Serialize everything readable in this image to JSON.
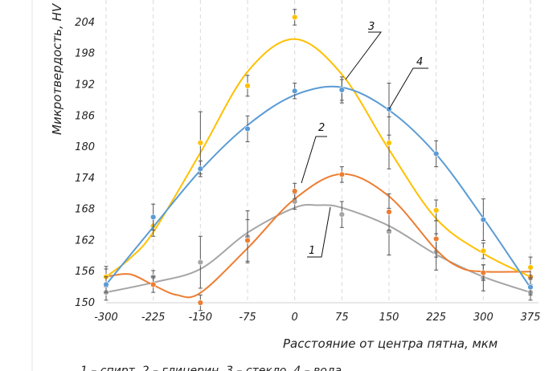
{
  "chart_data": {
    "type": "line",
    "ylabel": "Микротвердость, HV",
    "xlabel": "Расстояние от центра пятна, мкм",
    "legend": "1 – спирт, 2 – глицерин, 3 – стекло, 4 – вода",
    "x": [
      -300,
      -225,
      -150,
      -75,
      0,
      75,
      150,
      225,
      300,
      375
    ],
    "xticks": [
      "-300",
      "-225",
      "-150",
      "-75",
      "0",
      "75",
      "150",
      "225",
      "300",
      "375"
    ],
    "yticks": [
      "150",
      "156",
      "162",
      "168",
      "174",
      "180",
      "186",
      "192",
      "198",
      "204"
    ],
    "xlim": [
      -300,
      375
    ],
    "ylim": [
      150,
      206
    ],
    "grid": "vertical dashed",
    "series": [
      {
        "name": "1",
        "color": "#a5a5a5",
        "values": [
          152.0,
          155.0,
          157.8,
          162.7,
          169.5,
          167.0,
          163.7,
          159.8,
          154.8,
          152.0
        ],
        "errors": [
          1.5,
          1.2,
          5.0,
          5.0,
          1.5,
          2.5,
          4.5,
          3.5,
          2.5,
          1.5
        ],
        "fit_x": [
          -300,
          -225,
          -150,
          -75,
          0,
          37.5,
          75,
          150,
          225,
          300,
          375
        ],
        "fit_y": [
          152.0,
          153.9,
          156.5,
          163.5,
          168.3,
          168.8,
          168.3,
          164.8,
          159.3,
          155.0,
          152.0
        ]
      },
      {
        "name": "2",
        "color": "#ed7d31",
        "values": [
          155.0,
          153.5,
          150.0,
          162.0,
          171.5,
          174.7,
          167.5,
          162.3,
          155.8,
          155.0
        ],
        "errors": [
          1.5,
          1.5,
          1.5,
          4.0,
          1.5,
          1.5,
          3.5,
          3.5,
          1.5,
          1.5
        ],
        "fit_x": [
          -300,
          -262.5,
          -225,
          -187.5,
          -150,
          -75,
          0,
          75,
          150,
          225,
          262.5,
          300,
          375
        ],
        "fit_y": [
          155.0,
          155.5,
          153.4,
          151.5,
          151.9,
          160.5,
          170.0,
          174.8,
          170.5,
          160.2,
          156.8,
          156.0,
          156.0
        ]
      },
      {
        "name": "3",
        "color": "#ffc000",
        "values": [
          155.0,
          164.8,
          180.8,
          191.8,
          205.0,
          191.0,
          180.8,
          167.8,
          160.0,
          156.8
        ],
        "errors": [
          2.0,
          2.0,
          6.0,
          2.0,
          1.5,
          2.0,
          5.0,
          2.0,
          1.5,
          2.0
        ],
        "fit_x": [
          -300,
          -262.5,
          -225,
          -150,
          -75,
          0,
          75,
          150,
          225,
          300,
          375
        ],
        "fit_y": [
          155.0,
          158.5,
          163.6,
          178.9,
          194.5,
          200.8,
          194.0,
          179.5,
          166.2,
          159.5,
          155.0
        ]
      },
      {
        "name": "4",
        "color": "#5b9bd5",
        "values": [
          153.5,
          166.5,
          175.8,
          183.5,
          190.8,
          191.0,
          187.3,
          178.7,
          166.0,
          153.0
        ],
        "errors": [
          1.5,
          2.5,
          1.5,
          2.5,
          1.5,
          2.5,
          5.0,
          2.5,
          4.0,
          1.5
        ],
        "fit_x": [
          -300,
          -225,
          -150,
          -75,
          0,
          75,
          150,
          225,
          300,
          375
        ],
        "fit_y": [
          153.5,
          164.6,
          175.5,
          184.2,
          190.0,
          191.5,
          187.1,
          178.6,
          166.3,
          152.9
        ]
      }
    ]
  }
}
